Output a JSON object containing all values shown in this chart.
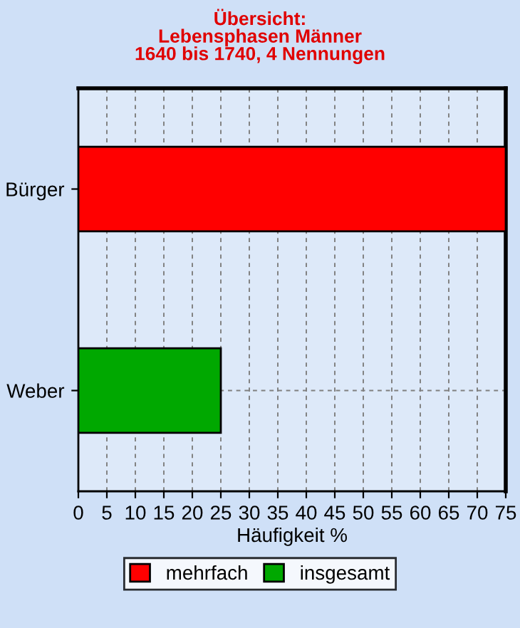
{
  "chart_data": {
    "type": "bar",
    "orientation": "horizontal",
    "title": "Übersicht:\nLebensphasen Männer\n1640 bis 1740, 4 Nennungen",
    "xlabel": "Häufigkeit %",
    "categories": [
      "Bürger",
      "Weber"
    ],
    "series": [
      {
        "name": "mehrfach",
        "color": "#ff0000",
        "values": [
          75,
          null
        ]
      },
      {
        "name": "insgesamt",
        "color": "#00a800",
        "values": [
          null,
          25
        ]
      }
    ],
    "xlim": [
      0,
      75
    ],
    "xticks": [
      0,
      5,
      10,
      15,
      20,
      25,
      30,
      35,
      40,
      45,
      50,
      55,
      60,
      65,
      70,
      75
    ],
    "grid": true,
    "legend": "bottom"
  }
}
